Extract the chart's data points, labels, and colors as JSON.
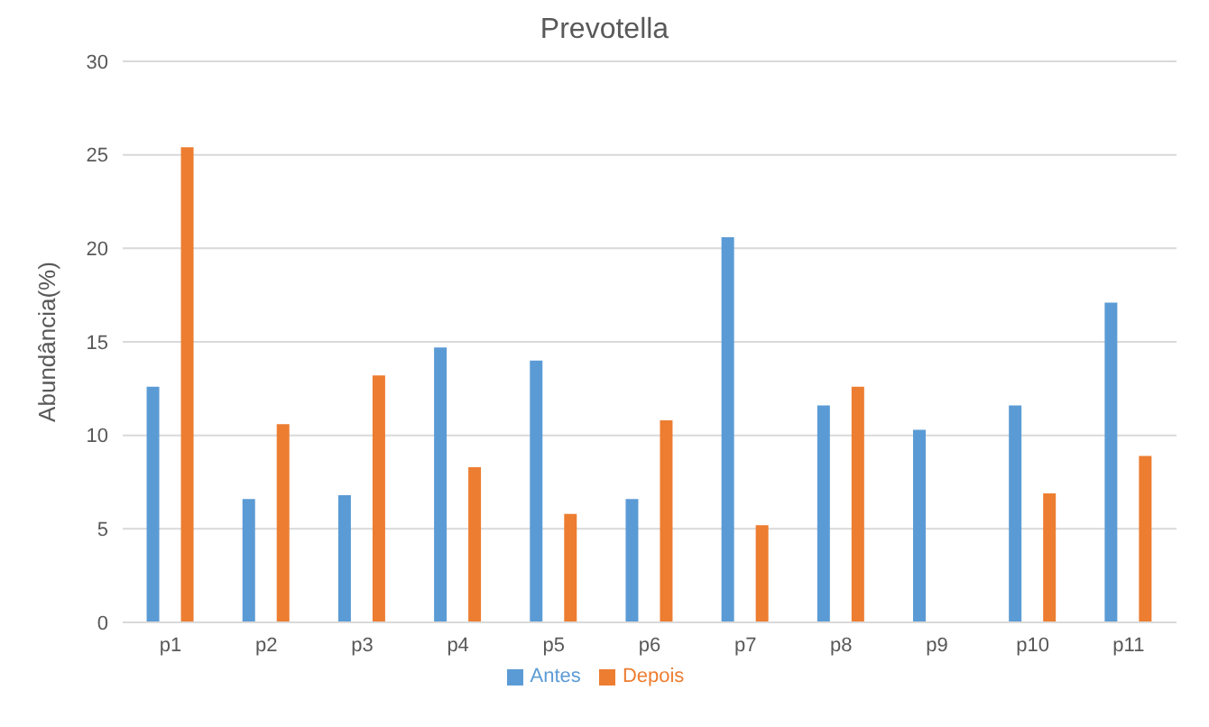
{
  "chart_data": {
    "type": "bar",
    "title": "Prevotella",
    "ylabel": "Abundância(%)",
    "categories": [
      "p1",
      "p2",
      "p3",
      "p4",
      "p5",
      "p6",
      "p7",
      "p8",
      "p9",
      "p10",
      "p11"
    ],
    "series": [
      {
        "name": "Antes",
        "color": "#5b9bd5",
        "values": [
          12.6,
          6.6,
          6.8,
          14.7,
          14.0,
          6.6,
          20.6,
          11.6,
          10.3,
          11.6,
          17.1
        ]
      },
      {
        "name": "Depois",
        "color": "#ed7d31",
        "values": [
          25.4,
          10.6,
          13.2,
          8.3,
          5.8,
          10.8,
          5.2,
          12.6,
          0,
          6.9,
          8.9
        ]
      }
    ],
    "ylim": [
      0,
      30
    ],
    "yticks": [
      0,
      5,
      10,
      15,
      20,
      25,
      30
    ],
    "grid": "y",
    "legend": "bottom"
  }
}
